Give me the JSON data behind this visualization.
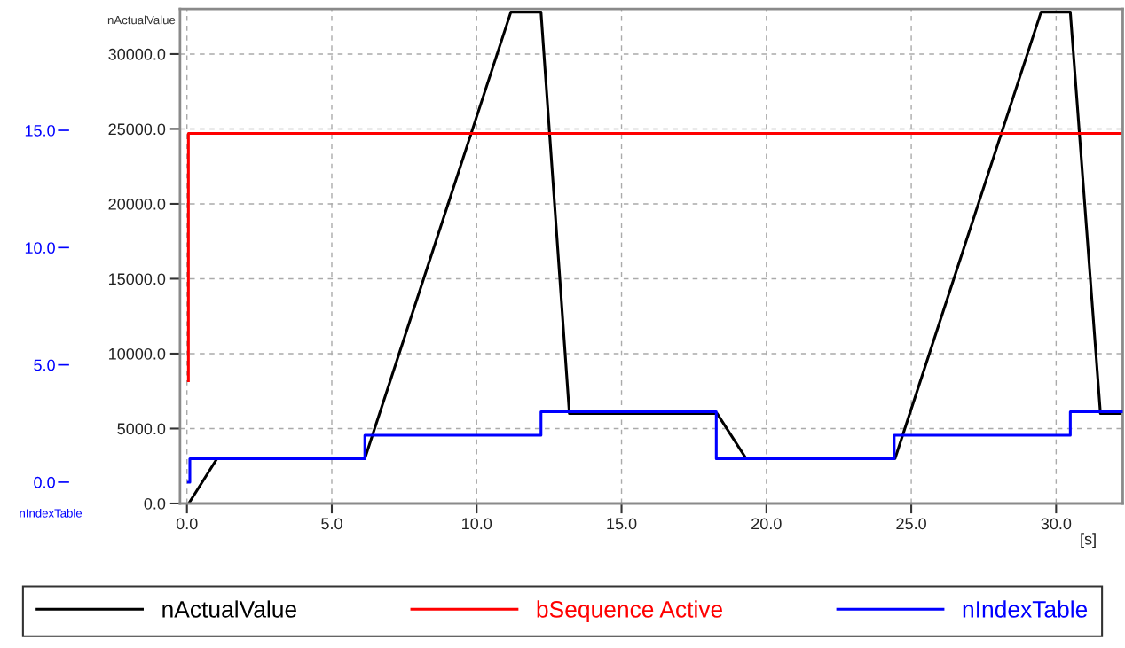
{
  "chart_data": {
    "type": "line",
    "ylabel": "nActualValue",
    "y2label": "nIndexTable",
    "xlabel": "[s]",
    "xlim": [
      -0.24,
      32.3
    ],
    "ylim": [
      0,
      33000
    ],
    "y2lim": [
      -0.91,
      20.17
    ],
    "xticks": [
      {
        "value": 0,
        "label": "0.0"
      },
      {
        "value": 5,
        "label": "5.0"
      },
      {
        "value": 10,
        "label": "10.0"
      },
      {
        "value": 15,
        "label": "15.0"
      },
      {
        "value": 20,
        "label": "20.0"
      },
      {
        "value": 25,
        "label": "25.0"
      },
      {
        "value": 30,
        "label": "30.0"
      }
    ],
    "yticks": [
      {
        "value": 0,
        "label": "0.0"
      },
      {
        "value": 5000,
        "label": "5000.0"
      },
      {
        "value": 10000,
        "label": "10000.0"
      },
      {
        "value": 15000,
        "label": "15000.0"
      },
      {
        "value": 20000,
        "label": "20000.0"
      },
      {
        "value": 25000,
        "label": "25000.0"
      },
      {
        "value": 30000,
        "label": "30000.0"
      }
    ],
    "y2ticks": [
      {
        "value": 0,
        "label": "0.0"
      },
      {
        "value": 5,
        "label": "5.0"
      },
      {
        "value": 10,
        "label": "10.0"
      },
      {
        "value": 15,
        "label": "15.0"
      }
    ],
    "grid": true,
    "legend": "bottom",
    "line_style": "solid",
    "marker": "none",
    "series": [
      {
        "name": "nActualValue",
        "color": "#000000",
        "x": [
          0.06,
          1.04,
          6.14,
          11.18,
          12.22,
          13.2,
          18.3,
          19.3,
          24.44,
          29.48,
          30.49,
          31.53,
          32.3
        ],
        "values": [
          0,
          3000,
          3000,
          32800,
          32800,
          6000,
          6000,
          3000,
          3000,
          32800,
          32800,
          6000,
          6000
        ]
      },
      {
        "name": "bSequence Active",
        "color": "#ff0000",
        "type": "line",
        "x": [
          0.05,
          0.05,
          0.2,
          32.3
        ],
        "values": [
          8200,
          24700,
          24700,
          24700
        ]
      },
      {
        "name": "nIndexTable",
        "color": "#0000ff",
        "type": "step",
        "axis": "y2",
        "x": [
          0.05,
          0.1,
          6.14,
          12.22,
          18.27,
          24.41,
          30.49,
          32.3
        ],
        "values": [
          0,
          1,
          2,
          3,
          1,
          2,
          3,
          3
        ]
      }
    ]
  }
}
